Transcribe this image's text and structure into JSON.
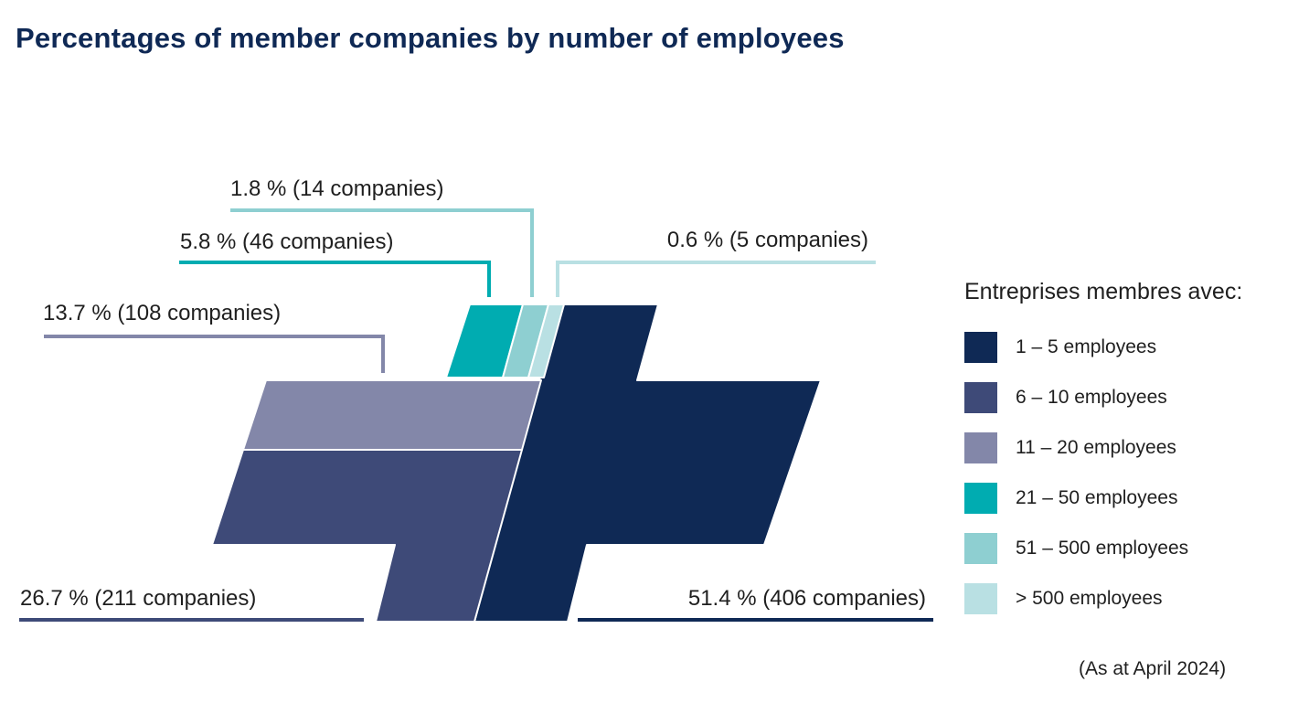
{
  "title": "Percentages of member companies by number of employees",
  "footnote": "(As at April 2024)",
  "legend_title": "Entreprises membres avec:",
  "chart_data": {
    "type": "pie",
    "title": "Percentages of member companies by number of employees",
    "legend_position": "right",
    "categories": [
      "1 – 5 employees",
      "6 – 10 employees",
      "11 – 20 employees",
      "21 – 50 employees",
      "51 – 500 employees",
      "> 500 employees"
    ],
    "values": [
      51.4,
      26.7,
      13.7,
      5.8,
      1.8,
      0.6
    ],
    "companies": [
      406,
      211,
      108,
      46,
      14,
      5
    ],
    "data_labels": [
      "51.4 % (406 companies)",
      "26.7 % (211 companies)",
      "13.7 % (108 companies)",
      "5.8 % (46 companies)",
      "1.8 % (14 companies)",
      "0.6 % (5 companies)"
    ],
    "colors": [
      "#0f2955",
      "#3e4a78",
      "#8387a9",
      "#00acb1",
      "#8ecfd1",
      "#b9e0e3"
    ]
  }
}
